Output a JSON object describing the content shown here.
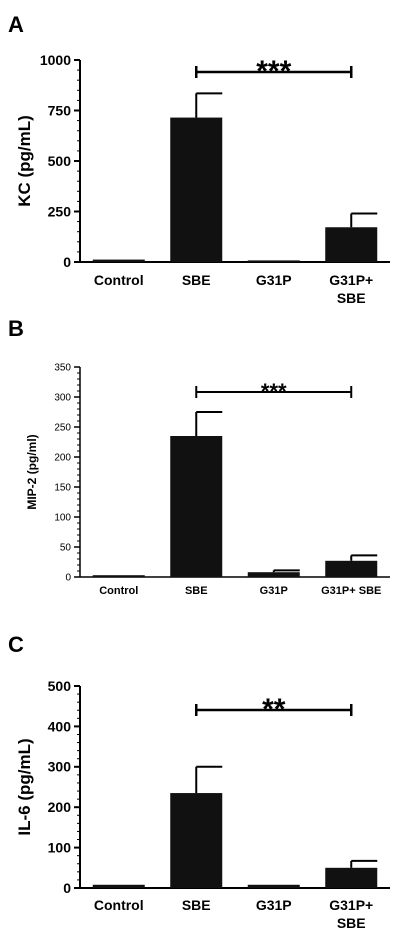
{
  "chart_data": [
    {
      "panel": "A",
      "type": "bar",
      "categories": [
        [
          "Control"
        ],
        [
          "SBE"
        ],
        [
          "G31P"
        ],
        [
          "G31P+",
          "SBE"
        ]
      ],
      "values": [
        12,
        715,
        8,
        172
      ],
      "errors": [
        0,
        120,
        0,
        68
      ],
      "ylabel": "KC (pg/mL)",
      "ylim": [
        0,
        1000
      ],
      "yticks": [
        0,
        250,
        500,
        750,
        1000
      ],
      "significance": {
        "from": 1,
        "to": 3,
        "label": "***"
      },
      "bar_color": "#111111"
    },
    {
      "panel": "B",
      "type": "bar",
      "categories": [
        [
          "Control"
        ],
        [
          "SBE"
        ],
        [
          "G31P"
        ],
        [
          "G31P+ SBE"
        ]
      ],
      "values": [
        3,
        235,
        8,
        27
      ],
      "errors": [
        0,
        40,
        3,
        9
      ],
      "ylabel": "MIP-2 (pg/ml)",
      "ylim": [
        0,
        350
      ],
      "yticks": [
        0,
        50,
        100,
        150,
        200,
        250,
        300,
        350
      ],
      "significance": {
        "from": 1,
        "to": 3,
        "label": "***"
      },
      "bar_color": "#111111"
    },
    {
      "panel": "C",
      "type": "bar",
      "categories": [
        [
          "Control"
        ],
        [
          "SBE"
        ],
        [
          "G31P"
        ],
        [
          "G31P+",
          "SBE"
        ]
      ],
      "values": [
        8,
        235,
        8,
        50
      ],
      "errors": [
        0,
        65,
        0,
        17
      ],
      "ylabel": "IL-6 (pg/mL)",
      "ylim": [
        0,
        500
      ],
      "yticks": [
        0,
        100,
        200,
        300,
        400,
        500
      ],
      "significance": {
        "from": 1,
        "to": 3,
        "label": "**"
      },
      "bar_color": "#111111"
    }
  ]
}
